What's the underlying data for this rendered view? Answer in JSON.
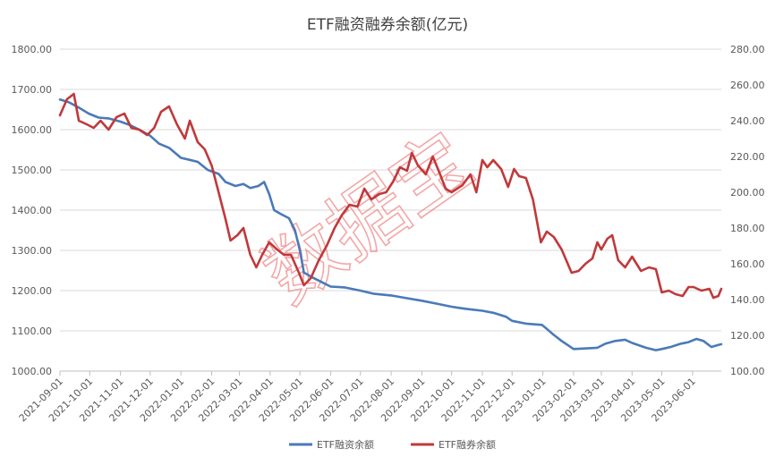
{
  "chart_data": {
    "type": "line",
    "title": "ETF融资融券余额(亿元)",
    "watermark": "数据宝",
    "x_ticks": [
      "2021-09-01",
      "2021-10-01",
      "2021-11-01",
      "2021-12-01",
      "2022-01-01",
      "2022-02-01",
      "2022-03-01",
      "2022-04-01",
      "2022-05-01",
      "2022-06-01",
      "2022-07-01",
      "2022-08-01",
      "2022-09-01",
      "2022-10-01",
      "2022-11-01",
      "2022-12-01",
      "2023-01-01",
      "2023-02-01",
      "2023-03-01",
      "2023-04-01",
      "2023-05-01",
      "2023-06-01"
    ],
    "x_range": [
      "2021-09-01",
      "2023-06-30"
    ],
    "y_left": {
      "range": [
        1000,
        1800
      ],
      "ticks": [
        "1000.00",
        "1100.00",
        "1200.00",
        "1300.00",
        "1400.00",
        "1500.00",
        "1600.00",
        "1700.00",
        "1800.00"
      ]
    },
    "y_right": {
      "range": [
        100,
        280
      ],
      "ticks": [
        "100.00",
        "120.00",
        "140.00",
        "160.00",
        "180.00",
        "200.00",
        "220.00",
        "240.00",
        "260.00",
        "280.00"
      ]
    },
    "grid": true,
    "legend_position": "bottom",
    "series": [
      {
        "name": "ETF融资余额",
        "axis": "left",
        "color": "#4a7ab8",
        "points": [
          [
            "2021-09-01",
            1675
          ],
          [
            "2021-09-10",
            1668
          ],
          [
            "2021-09-20",
            1655
          ],
          [
            "2021-09-30",
            1640
          ],
          [
            "2021-10-10",
            1630
          ],
          [
            "2021-10-20",
            1628
          ],
          [
            "2021-11-01",
            1620
          ],
          [
            "2021-11-10",
            1612
          ],
          [
            "2021-11-20",
            1600
          ],
          [
            "2021-12-01",
            1585
          ],
          [
            "2021-12-10",
            1565
          ],
          [
            "2021-12-20",
            1555
          ],
          [
            "2022-01-01",
            1530
          ],
          [
            "2022-01-10",
            1525
          ],
          [
            "2022-01-18",
            1520
          ],
          [
            "2022-01-28",
            1500
          ],
          [
            "2022-02-08",
            1490
          ],
          [
            "2022-02-15",
            1470
          ],
          [
            "2022-02-25",
            1460
          ],
          [
            "2022-03-05",
            1465
          ],
          [
            "2022-03-12",
            1455
          ],
          [
            "2022-03-20",
            1460
          ],
          [
            "2022-03-26",
            1470
          ],
          [
            "2022-03-31",
            1440
          ],
          [
            "2022-04-05",
            1400
          ],
          [
            "2022-04-12",
            1390
          ],
          [
            "2022-04-20",
            1380
          ],
          [
            "2022-04-26",
            1350
          ],
          [
            "2022-05-01",
            1300
          ],
          [
            "2022-05-05",
            1245
          ],
          [
            "2022-05-12",
            1235
          ],
          [
            "2022-05-20",
            1225
          ],
          [
            "2022-06-01",
            1210
          ],
          [
            "2022-06-15",
            1208
          ],
          [
            "2022-07-01",
            1200
          ],
          [
            "2022-07-15",
            1192
          ],
          [
            "2022-08-01",
            1188
          ],
          [
            "2022-08-15",
            1182
          ],
          [
            "2022-09-01",
            1175
          ],
          [
            "2022-09-15",
            1168
          ],
          [
            "2022-10-01",
            1160
          ],
          [
            "2022-10-15",
            1155
          ],
          [
            "2022-11-01",
            1150
          ],
          [
            "2022-11-12",
            1145
          ],
          [
            "2022-11-25",
            1135
          ],
          [
            "2022-12-01",
            1125
          ],
          [
            "2022-12-15",
            1118
          ],
          [
            "2022-12-31",
            1115
          ],
          [
            "2023-01-05",
            1105
          ],
          [
            "2023-01-12",
            1090
          ],
          [
            "2023-01-20",
            1075
          ],
          [
            "2023-02-01",
            1055
          ],
          [
            "2023-02-10",
            1056
          ],
          [
            "2023-02-25",
            1058
          ],
          [
            "2023-03-05",
            1068
          ],
          [
            "2023-03-15",
            1075
          ],
          [
            "2023-03-25",
            1078
          ],
          [
            "2023-04-01",
            1070
          ],
          [
            "2023-04-15",
            1058
          ],
          [
            "2023-04-25",
            1052
          ],
          [
            "2023-05-01",
            1055
          ],
          [
            "2023-05-10",
            1060
          ],
          [
            "2023-05-20",
            1068
          ],
          [
            "2023-05-28",
            1072
          ],
          [
            "2023-06-05",
            1080
          ],
          [
            "2023-06-12",
            1075
          ],
          [
            "2023-06-20",
            1060
          ],
          [
            "2023-06-27",
            1065
          ],
          [
            "2023-06-30",
            1067
          ]
        ]
      },
      {
        "name": "ETF融券余额",
        "axis": "right",
        "color": "#c0393b",
        "points": [
          [
            "2021-09-01",
            243
          ],
          [
            "2021-09-08",
            252
          ],
          [
            "2021-09-15",
            255
          ],
          [
            "2021-09-20",
            240
          ],
          [
            "2021-09-28",
            238
          ],
          [
            "2021-10-05",
            236
          ],
          [
            "2021-10-12",
            240
          ],
          [
            "2021-10-20",
            235
          ],
          [
            "2021-10-28",
            242
          ],
          [
            "2021-11-05",
            244
          ],
          [
            "2021-11-12",
            236
          ],
          [
            "2021-11-20",
            235
          ],
          [
            "2021-11-28",
            232
          ],
          [
            "2021-12-05",
            236
          ],
          [
            "2021-12-12",
            245
          ],
          [
            "2021-12-20",
            248
          ],
          [
            "2021-12-28",
            238
          ],
          [
            "2022-01-05",
            230
          ],
          [
            "2022-01-10",
            240
          ],
          [
            "2022-01-18",
            228
          ],
          [
            "2022-01-25",
            224
          ],
          [
            "2022-02-01",
            215
          ],
          [
            "2022-02-08",
            200
          ],
          [
            "2022-02-15",
            185
          ],
          [
            "2022-02-20",
            173
          ],
          [
            "2022-02-27",
            176
          ],
          [
            "2022-03-05",
            180
          ],
          [
            "2022-03-12",
            165
          ],
          [
            "2022-03-18",
            158
          ],
          [
            "2022-03-24",
            165
          ],
          [
            "2022-03-31",
            172
          ],
          [
            "2022-04-08",
            168
          ],
          [
            "2022-04-15",
            165
          ],
          [
            "2022-04-22",
            165
          ],
          [
            "2022-04-30",
            155
          ],
          [
            "2022-05-05",
            148
          ],
          [
            "2022-05-12",
            152
          ],
          [
            "2022-05-20",
            162
          ],
          [
            "2022-05-28",
            170
          ],
          [
            "2022-06-05",
            180
          ],
          [
            "2022-06-12",
            187
          ],
          [
            "2022-06-20",
            193
          ],
          [
            "2022-06-28",
            192
          ],
          [
            "2022-07-05",
            202
          ],
          [
            "2022-07-12",
            196
          ],
          [
            "2022-07-20",
            199
          ],
          [
            "2022-07-27",
            200
          ],
          [
            "2022-08-03",
            206
          ],
          [
            "2022-08-10",
            214
          ],
          [
            "2022-08-17",
            212
          ],
          [
            "2022-08-22",
            222
          ],
          [
            "2022-08-28",
            215
          ],
          [
            "2022-09-05",
            210
          ],
          [
            "2022-09-12",
            220
          ],
          [
            "2022-09-18",
            212
          ],
          [
            "2022-09-25",
            202
          ],
          [
            "2022-10-01",
            200
          ],
          [
            "2022-10-12",
            204
          ],
          [
            "2022-10-20",
            210
          ],
          [
            "2022-10-26",
            200
          ],
          [
            "2022-11-01",
            218
          ],
          [
            "2022-11-06",
            214
          ],
          [
            "2022-11-12",
            218
          ],
          [
            "2022-11-20",
            213
          ],
          [
            "2022-11-27",
            203
          ],
          [
            "2022-12-03",
            213
          ],
          [
            "2022-12-08",
            209
          ],
          [
            "2022-12-15",
            208
          ],
          [
            "2022-12-22",
            196
          ],
          [
            "2022-12-30",
            172
          ],
          [
            "2023-01-05",
            178
          ],
          [
            "2023-01-12",
            175
          ],
          [
            "2023-01-20",
            168
          ],
          [
            "2023-01-30",
            155
          ],
          [
            "2023-02-06",
            156
          ],
          [
            "2023-02-13",
            160
          ],
          [
            "2023-02-20",
            163
          ],
          [
            "2023-02-25",
            172
          ],
          [
            "2023-03-01",
            168
          ],
          [
            "2023-03-07",
            174
          ],
          [
            "2023-03-12",
            176
          ],
          [
            "2023-03-18",
            162
          ],
          [
            "2023-03-25",
            158
          ],
          [
            "2023-04-01",
            164
          ],
          [
            "2023-04-10",
            156
          ],
          [
            "2023-04-18",
            158
          ],
          [
            "2023-04-25",
            157
          ],
          [
            "2023-05-01",
            144
          ],
          [
            "2023-05-08",
            145
          ],
          [
            "2023-05-15",
            143
          ],
          [
            "2023-05-22",
            142
          ],
          [
            "2023-05-28",
            147
          ],
          [
            "2023-06-02",
            147
          ],
          [
            "2023-06-10",
            145
          ],
          [
            "2023-06-18",
            146
          ],
          [
            "2023-06-22",
            141
          ],
          [
            "2023-06-27",
            142
          ],
          [
            "2023-06-30",
            146
          ]
        ]
      }
    ]
  }
}
